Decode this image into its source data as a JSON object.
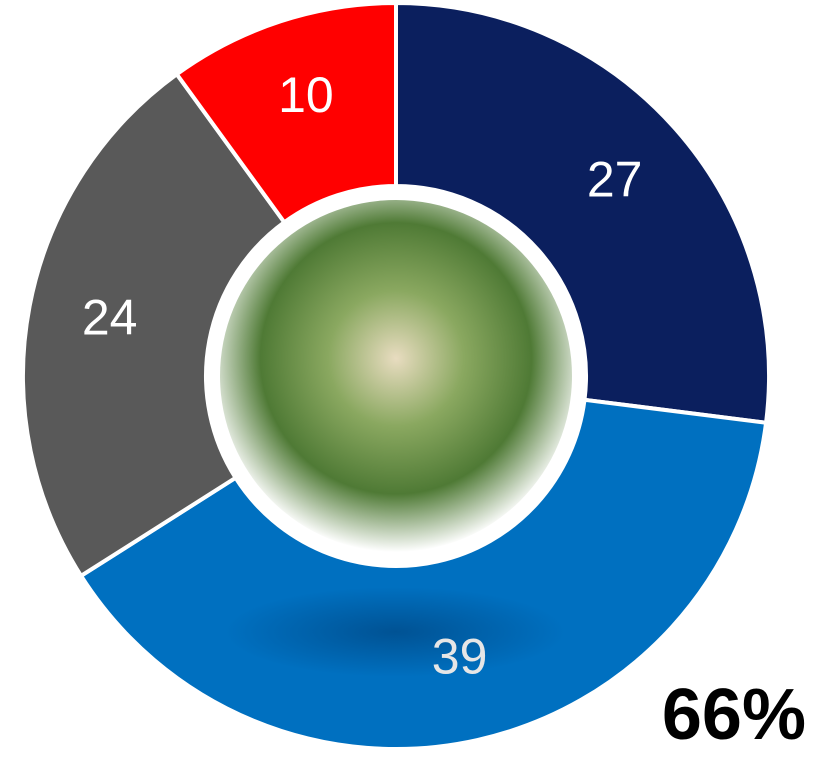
{
  "chart_data": {
    "type": "donut",
    "values": [
      27,
      39,
      24,
      10
    ],
    "colors": [
      "#0b1f5e",
      "#0070c0",
      "#595959",
      "#ff0000"
    ],
    "annotation": "66%"
  }
}
